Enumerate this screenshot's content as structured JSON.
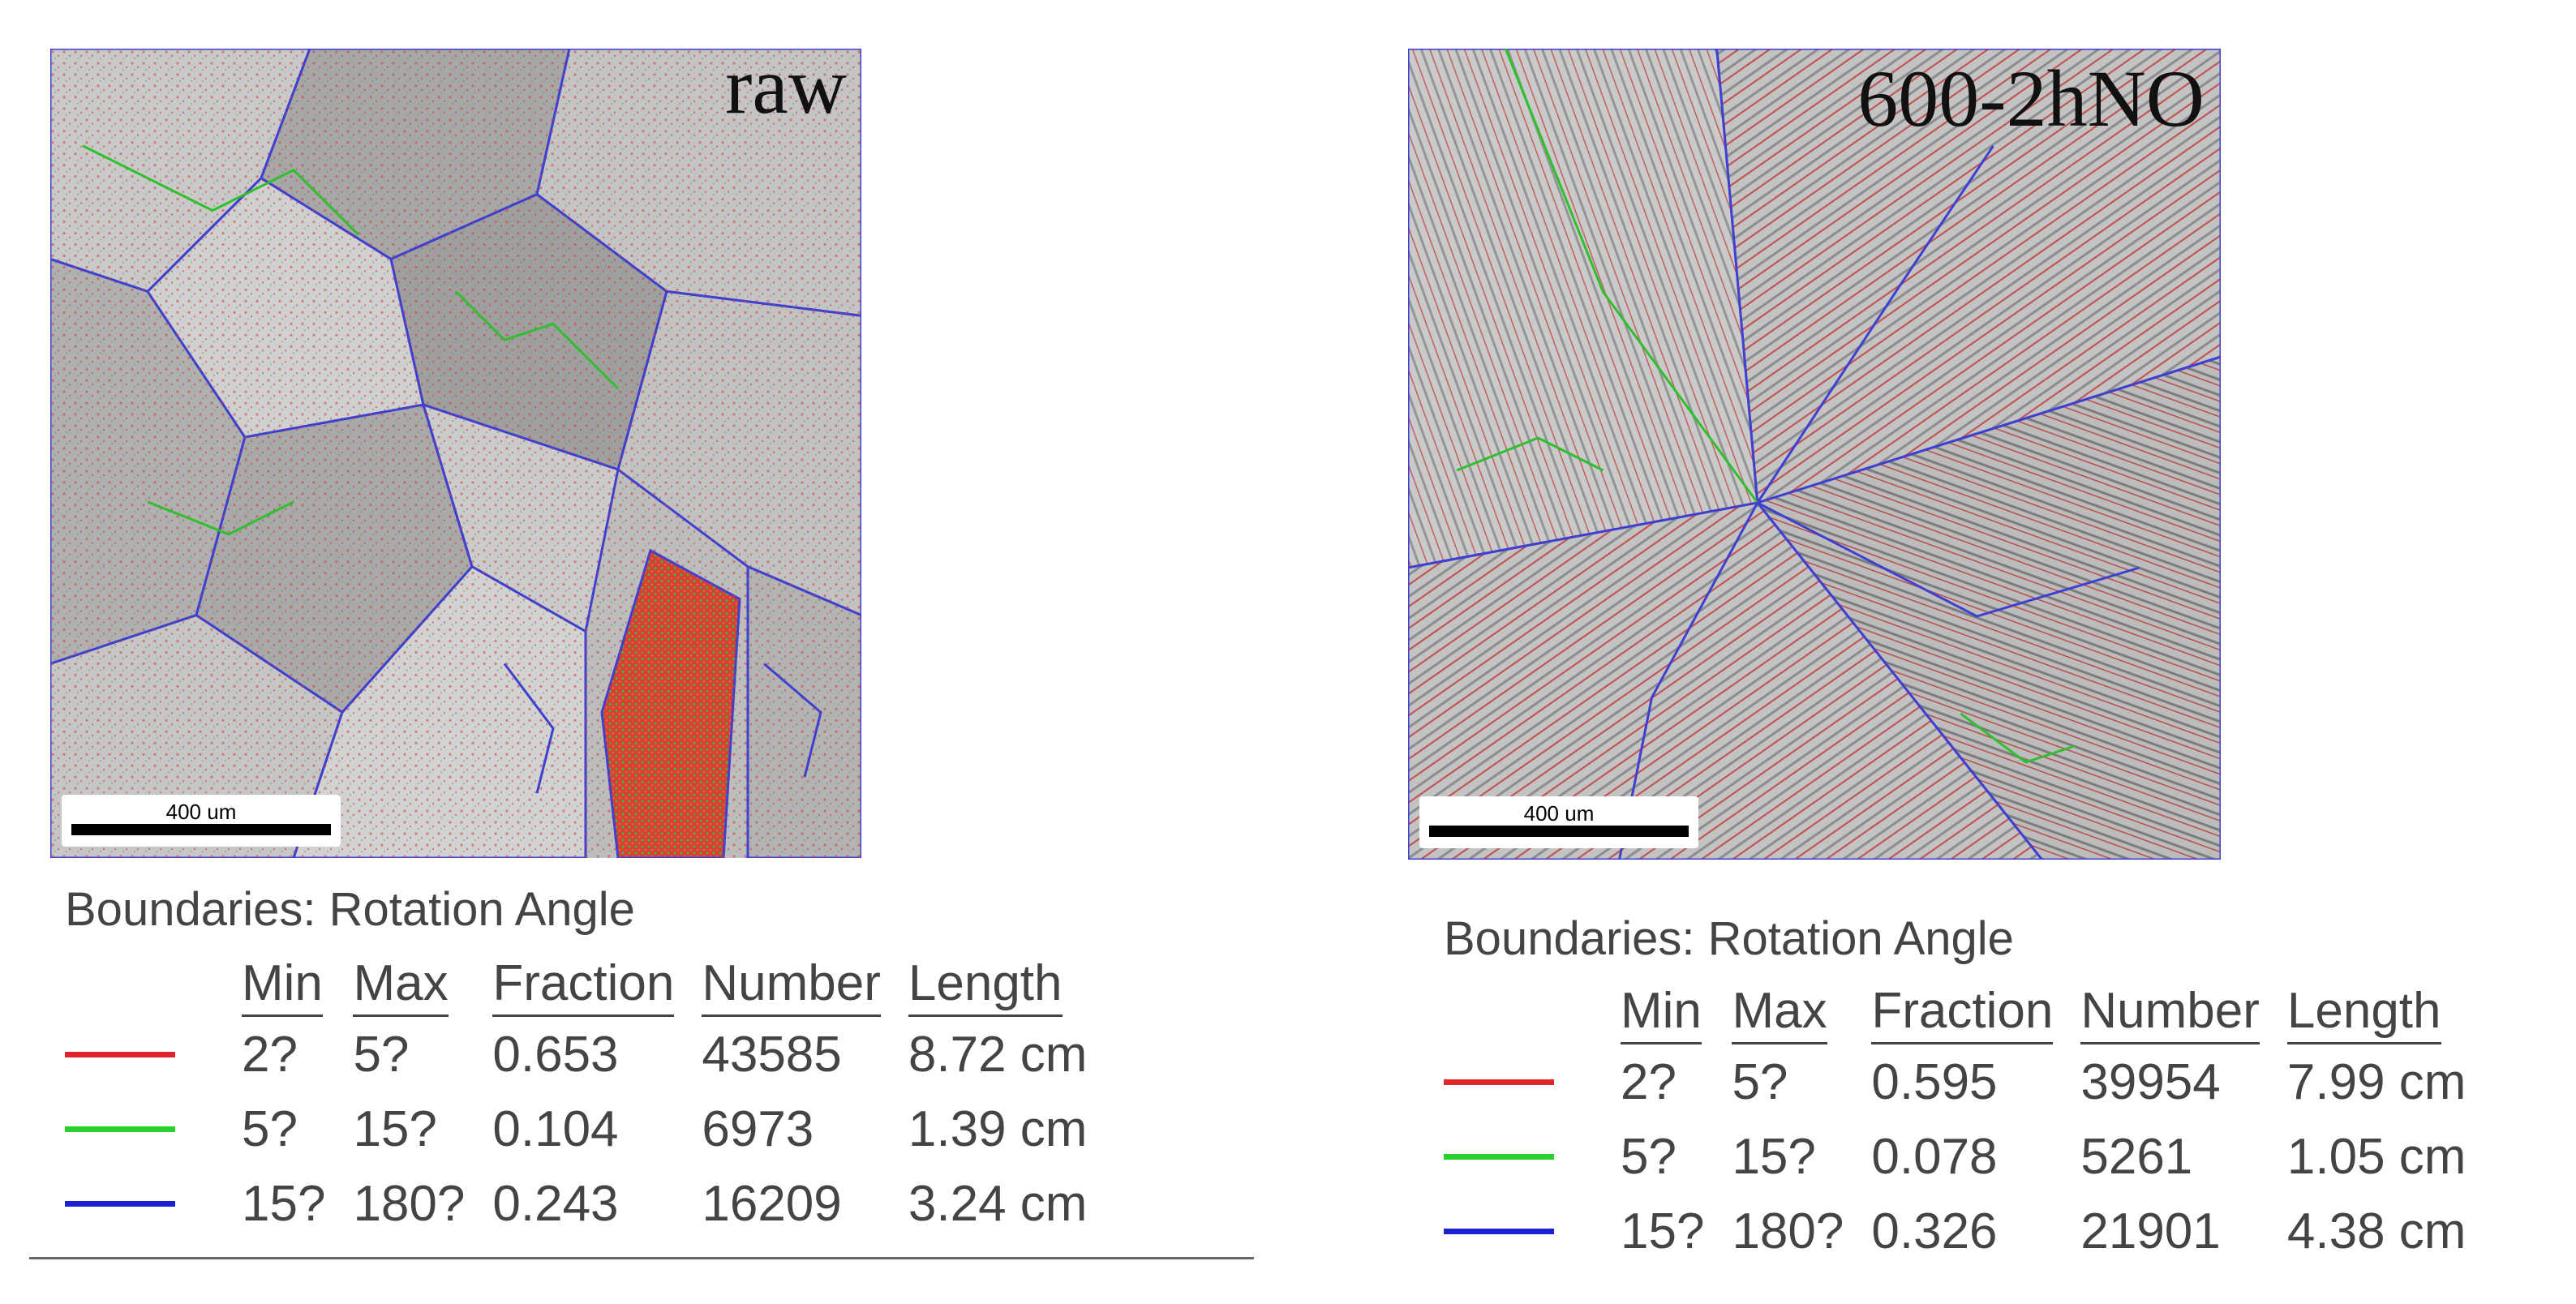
{
  "left": {
    "map_label": "raw",
    "scale_text": "400 um",
    "legend_title": "Boundaries: Rotation Angle",
    "headers": {
      "min": "Min",
      "max": "Max",
      "fraction": "Fraction",
      "number": "Number",
      "length": "Length"
    },
    "rows": [
      {
        "color": "#e0262a",
        "min": "2?",
        "max": "5?",
        "fraction": "0.653",
        "number": "43585",
        "length": "8.72 cm"
      },
      {
        "color": "#2bd12b",
        "min": "5?",
        "max": "15?",
        "fraction": "0.104",
        "number": "6973",
        "length": "1.39 cm"
      },
      {
        "color": "#1b22d6",
        "min": "15?",
        "max": "180?",
        "fraction": "0.243",
        "number": "16209",
        "length": "3.24 cm"
      }
    ]
  },
  "right": {
    "map_label": "600-2hNO",
    "scale_text": "400 um",
    "legend_title": "Boundaries: Rotation Angle",
    "headers": {
      "min": "Min",
      "max": "Max",
      "fraction": "Fraction",
      "number": "Number",
      "length": "Length"
    },
    "rows": [
      {
        "color": "#e0262a",
        "min": "2?",
        "max": "5?",
        "fraction": "0.595",
        "number": "39954",
        "length": "7.99 cm"
      },
      {
        "color": "#2bd12b",
        "min": "5?",
        "max": "15?",
        "fraction": "0.078",
        "number": "5261",
        "length": "1.05 cm"
      },
      {
        "color": "#1b22d6",
        "min": "15?",
        "max": "180?",
        "fraction": "0.326",
        "number": "21901",
        "length": "4.38 cm"
      }
    ]
  }
}
